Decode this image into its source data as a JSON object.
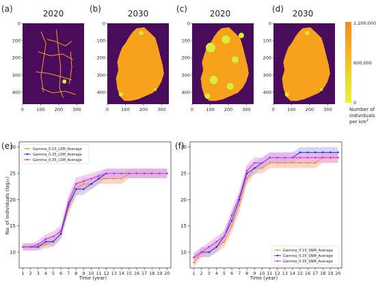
{
  "colors": {
    "map_bg": "#4b0b5c",
    "land": "#f7a21b",
    "road": "#f0a020",
    "low": "#d8ee3a",
    "orange": "#f08d2c",
    "blue": "#2230e0",
    "magenta": "#d030d8",
    "orange_band": "#f5b49a",
    "blue_band": "#b8b4f0",
    "magenta_band": "#e8a8e8"
  },
  "maps": [
    {
      "panel": "(a)",
      "title": "2020",
      "style": "roads"
    },
    {
      "panel": "(b)",
      "title": "2030",
      "style": "full"
    },
    {
      "panel": "(c)",
      "title": "2020",
      "style": "patchy"
    },
    {
      "panel": "(d)",
      "title": "2030",
      "style": "full"
    }
  ],
  "map_axes": {
    "xticks": [
      "0",
      "100",
      "200",
      "300"
    ],
    "yticks": [
      "0",
      "100",
      "200",
      "300",
      "400"
    ]
  },
  "colorbar": {
    "ticks": [
      "1,200,000",
      "600,000",
      "0"
    ],
    "label_lines": [
      "Number of",
      "individuals"
    ],
    "label_last": "per km",
    "label_exp": "2"
  },
  "chart_data": [
    {
      "panel": "(e)",
      "type": "line",
      "xlabel": "Time (year)",
      "ylabel": "No. of individuals (log₁₀)",
      "x": [
        1,
        2,
        3,
        4,
        5,
        6,
        7,
        8,
        9,
        10,
        11,
        12,
        13,
        14,
        15,
        16,
        17,
        18,
        19,
        20
      ],
      "xlim": [
        0.5,
        20.5
      ],
      "ylim": [
        7,
        31
      ],
      "yticks": [
        10,
        15,
        20,
        25,
        30
      ],
      "legend_position": "top-left",
      "series": [
        {
          "name": "Gamma_0.15_LSM_Average",
          "color_key": "orange",
          "values": [
            11,
            11,
            11,
            11.5,
            12,
            13.5,
            18.5,
            22,
            23,
            23,
            24,
            24,
            24,
            24,
            25,
            25,
            25,
            25,
            25,
            25
          ],
          "band": [
            0.7,
            0.7,
            0.7,
            0.8,
            1,
            1,
            1.3,
            1.2,
            1.1,
            1.1,
            1,
            1,
            1,
            1,
            0.9,
            0.9,
            0.9,
            0.9,
            0.9,
            0.9
          ]
        },
        {
          "name": "Gamma_0.25_LSM_Average",
          "color_key": "blue",
          "values": [
            11,
            11,
            11,
            12,
            12,
            13.5,
            19,
            22,
            22,
            23,
            24,
            25,
            25,
            25,
            25,
            25,
            25,
            25,
            25,
            25
          ],
          "band": [
            0.6,
            0.6,
            0.6,
            0.8,
            0.9,
            1,
            1.3,
            1.2,
            1.1,
            1,
            1,
            0.9,
            0.9,
            0.9,
            0.9,
            0.9,
            0.9,
            0.9,
            0.9,
            0.9
          ]
        },
        {
          "name": "Gamma_0.35_LSM_Average",
          "color_key": "magenta",
          "values": [
            11,
            11,
            11.5,
            12.5,
            13,
            14,
            19.5,
            23,
            23.5,
            24,
            24.5,
            25,
            25,
            25,
            25,
            25,
            25,
            25,
            25,
            25
          ],
          "band": [
            0.6,
            0.6,
            0.8,
            0.9,
            1,
            1.1,
            1.3,
            1.2,
            1.1,
            1,
            1,
            0.9,
            0.9,
            0.9,
            0.9,
            0.9,
            0.9,
            0.9,
            0.9,
            0.9
          ]
        }
      ]
    },
    {
      "panel": "(f)",
      "type": "line",
      "xlabel": "Time (year)",
      "ylabel": "",
      "x": [
        1,
        2,
        3,
        4,
        5,
        6,
        7,
        8,
        9,
        10,
        11,
        12,
        13,
        14,
        15,
        16,
        17,
        18,
        19,
        20
      ],
      "xlim": [
        0.5,
        20.5
      ],
      "ylim": [
        7,
        31
      ],
      "yticks": [
        10,
        15,
        20,
        25,
        30
      ],
      "legend_position": "bottom-right",
      "series": [
        {
          "name": "Gamma_0.15_SNM_Average",
          "color_key": "orange",
          "values": [
            8,
            10,
            10,
            11,
            12,
            15,
            19,
            24,
            26,
            26,
            27,
            27,
            27,
            27,
            27,
            27,
            27,
            28,
            28,
            28
          ],
          "band": [
            0.9,
            1,
            1,
            1,
            1.1,
            1.2,
            1.3,
            1.2,
            1.1,
            1,
            1,
            1,
            1,
            1,
            1,
            1,
            1,
            1,
            1,
            1
          ]
        },
        {
          "name": "Gamma_0.25_SNM_Average",
          "color_key": "blue",
          "values": [
            9,
            10,
            10,
            11,
            13,
            16,
            20,
            25,
            26,
            27,
            28,
            28,
            28,
            28,
            29,
            29,
            29,
            29,
            29,
            29
          ],
          "band": [
            0.8,
            0.9,
            0.9,
            1,
            1.1,
            1.2,
            1.3,
            1.2,
            1.1,
            1,
            1,
            1,
            1,
            1,
            1,
            1,
            1,
            1,
            1,
            1
          ]
        },
        {
          "name": "Gamma_0.35_SNM_Average",
          "color_key": "magenta",
          "values": [
            9,
            10,
            11,
            12,
            13,
            17,
            20.5,
            25.5,
            27,
            27,
            28,
            28,
            28,
            28,
            28,
            28,
            28,
            28,
            28,
            28
          ],
          "band": [
            0.8,
            0.9,
            0.9,
            1,
            1.1,
            1.2,
            1.3,
            1.2,
            1.1,
            1,
            1,
            1,
            1,
            1,
            1,
            1,
            1,
            1,
            1,
            1
          ]
        }
      ]
    }
  ]
}
